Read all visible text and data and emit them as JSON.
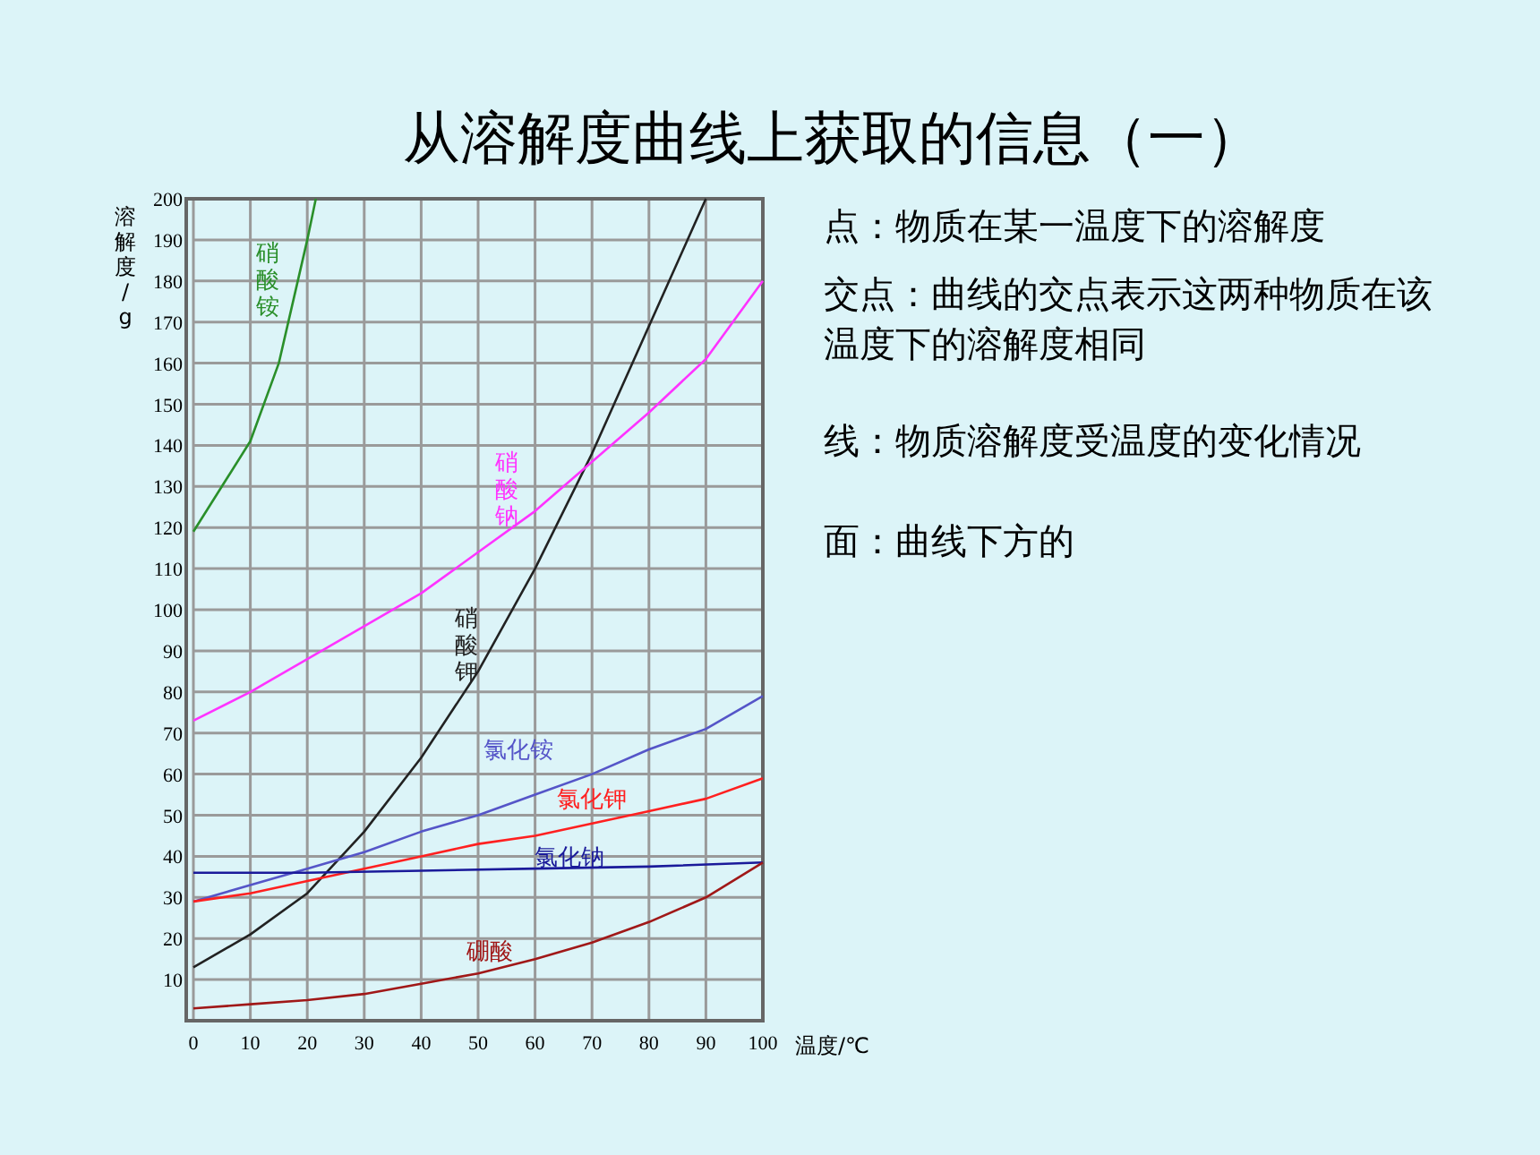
{
  "chart_data": {
    "type": "line",
    "title": "从溶解度曲线上获取的信息（一）",
    "xlabel": "温度/℃",
    "ylabel": "溶解度/g",
    "xlim": [
      0,
      100
    ],
    "ylim": [
      0,
      200
    ],
    "xticks": [
      0,
      10,
      20,
      30,
      40,
      50,
      60,
      70,
      80,
      90,
      100
    ],
    "yticks": [
      10,
      20,
      30,
      40,
      50,
      60,
      70,
      80,
      90,
      100,
      110,
      120,
      130,
      140,
      150,
      160,
      170,
      180,
      190,
      200
    ],
    "grid": true,
    "marker": "none",
    "line_style": "solid",
    "series": [
      {
        "name": "硝酸铵",
        "color": "#2a8f2a",
        "x": [
          0,
          5,
          10,
          15,
          20,
          21.5
        ],
        "values": [
          119,
          130,
          141,
          160,
          190,
          200
        ]
      },
      {
        "name": "硝酸钾",
        "color": "#222222",
        "x": [
          0,
          10,
          20,
          30,
          40,
          50,
          60,
          70,
          80,
          90
        ],
        "values": [
          13,
          21,
          31,
          46,
          64,
          85,
          110,
          138,
          169,
          200
        ]
      },
      {
        "name": "硝酸钠",
        "color": "#ff33ff",
        "x": [
          0,
          10,
          20,
          30,
          40,
          50,
          60,
          70,
          80,
          90,
          100
        ],
        "values": [
          73,
          80,
          88,
          96,
          104,
          114,
          124,
          136,
          148,
          161,
          180
        ]
      },
      {
        "name": "氯化铵",
        "color": "#5555c8",
        "x": [
          0,
          10,
          20,
          30,
          40,
          50,
          60,
          70,
          80,
          90,
          100
        ],
        "values": [
          29,
          33,
          37,
          41,
          46,
          50,
          55,
          60,
          66,
          71,
          79
        ]
      },
      {
        "name": "氯化钾",
        "color": "#ff2020",
        "x": [
          0,
          10,
          20,
          30,
          40,
          50,
          60,
          70,
          80,
          90,
          100
        ],
        "values": [
          29,
          31,
          34,
          37,
          40,
          43,
          45,
          48,
          51,
          54,
          59
        ]
      },
      {
        "name": "氯化钠",
        "color": "#1a1a9a",
        "x": [
          0,
          20,
          40,
          60,
          80,
          100
        ],
        "values": [
          36,
          36,
          36.5,
          37,
          37.5,
          38.5
        ]
      },
      {
        "name": "硼酸",
        "color": "#a01818",
        "x": [
          0,
          10,
          20,
          30,
          40,
          50,
          60,
          70,
          80,
          90,
          100
        ],
        "values": [
          3,
          4,
          5,
          6.5,
          9,
          11.5,
          15,
          19,
          24,
          30,
          38.5
        ]
      }
    ],
    "annotations": [
      "点：物质在某一温度下的溶解度",
      "交点：曲线的交点表示这两种物质在该温度下的溶解度相同",
      "线：物质溶解度受温度的变化情况",
      "面：曲线下方的"
    ]
  }
}
